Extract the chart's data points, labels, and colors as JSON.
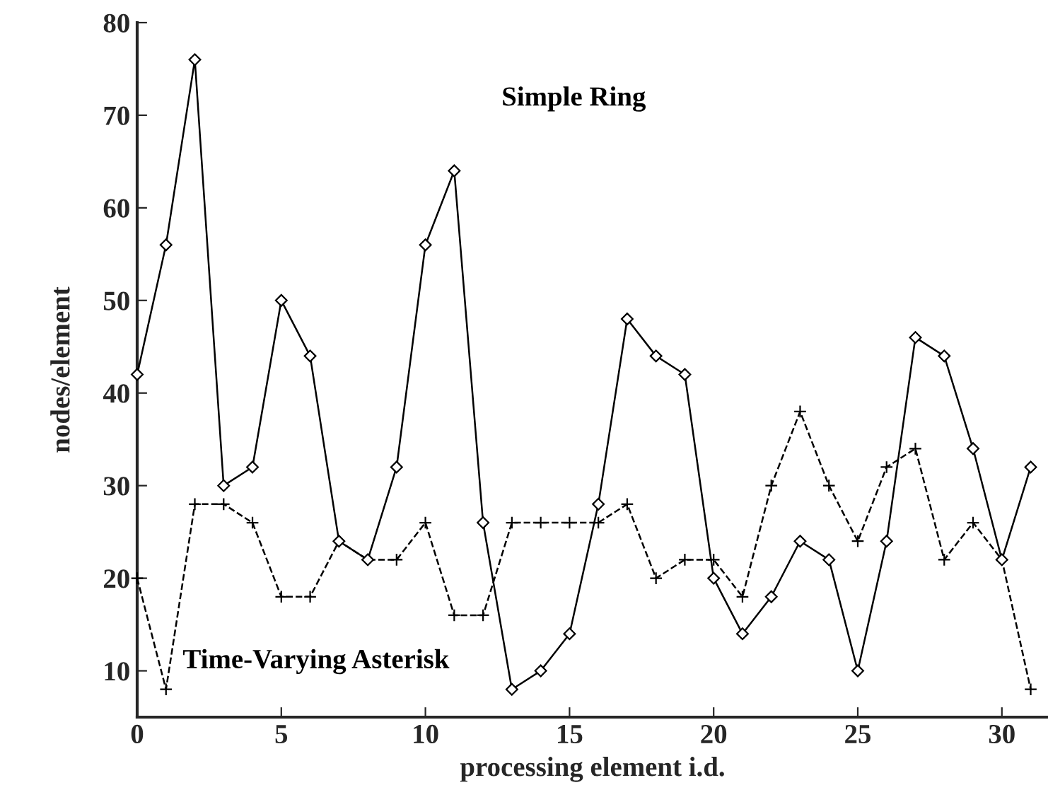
{
  "chart_data": {
    "type": "line",
    "xlabel": "processing element i.d.",
    "ylabel": "nodes/element",
    "x": [
      0,
      1,
      2,
      3,
      4,
      5,
      6,
      7,
      8,
      9,
      10,
      11,
      12,
      13,
      14,
      15,
      16,
      17,
      18,
      19,
      20,
      21,
      22,
      23,
      24,
      25,
      26,
      27,
      28,
      29,
      30,
      31
    ],
    "series": [
      {
        "name": "Simple Ring",
        "color": "#000000",
        "marker": "diamond",
        "line_style": "solid",
        "values": [
          42,
          56,
          76,
          30,
          32,
          50,
          44,
          24,
          22,
          32,
          56,
          64,
          26,
          8,
          10,
          14,
          28,
          48,
          44,
          42,
          20,
          14,
          18,
          24,
          22,
          10,
          24,
          46,
          44,
          34,
          22,
          32
        ]
      },
      {
        "name": "Time-Varying Asterisk",
        "color": "#000000",
        "marker": "cross",
        "line_style": "dashed",
        "values": [
          20,
          8,
          28,
          28,
          26,
          18,
          18,
          24,
          22,
          22,
          26,
          16,
          16,
          26,
          26,
          26,
          26,
          28,
          20,
          22,
          22,
          18,
          30,
          38,
          30,
          24,
          32,
          34,
          22,
          26,
          22,
          8
        ]
      }
    ],
    "xlim": [
      0,
      31.6
    ],
    "xticks": [
      0,
      5,
      10,
      15,
      20,
      25,
      30
    ],
    "ylim": [
      5,
      80
    ],
    "yticks": [
      10,
      20,
      30,
      40,
      50,
      60,
      70,
      80
    ],
    "grid": false,
    "legend": false
  }
}
